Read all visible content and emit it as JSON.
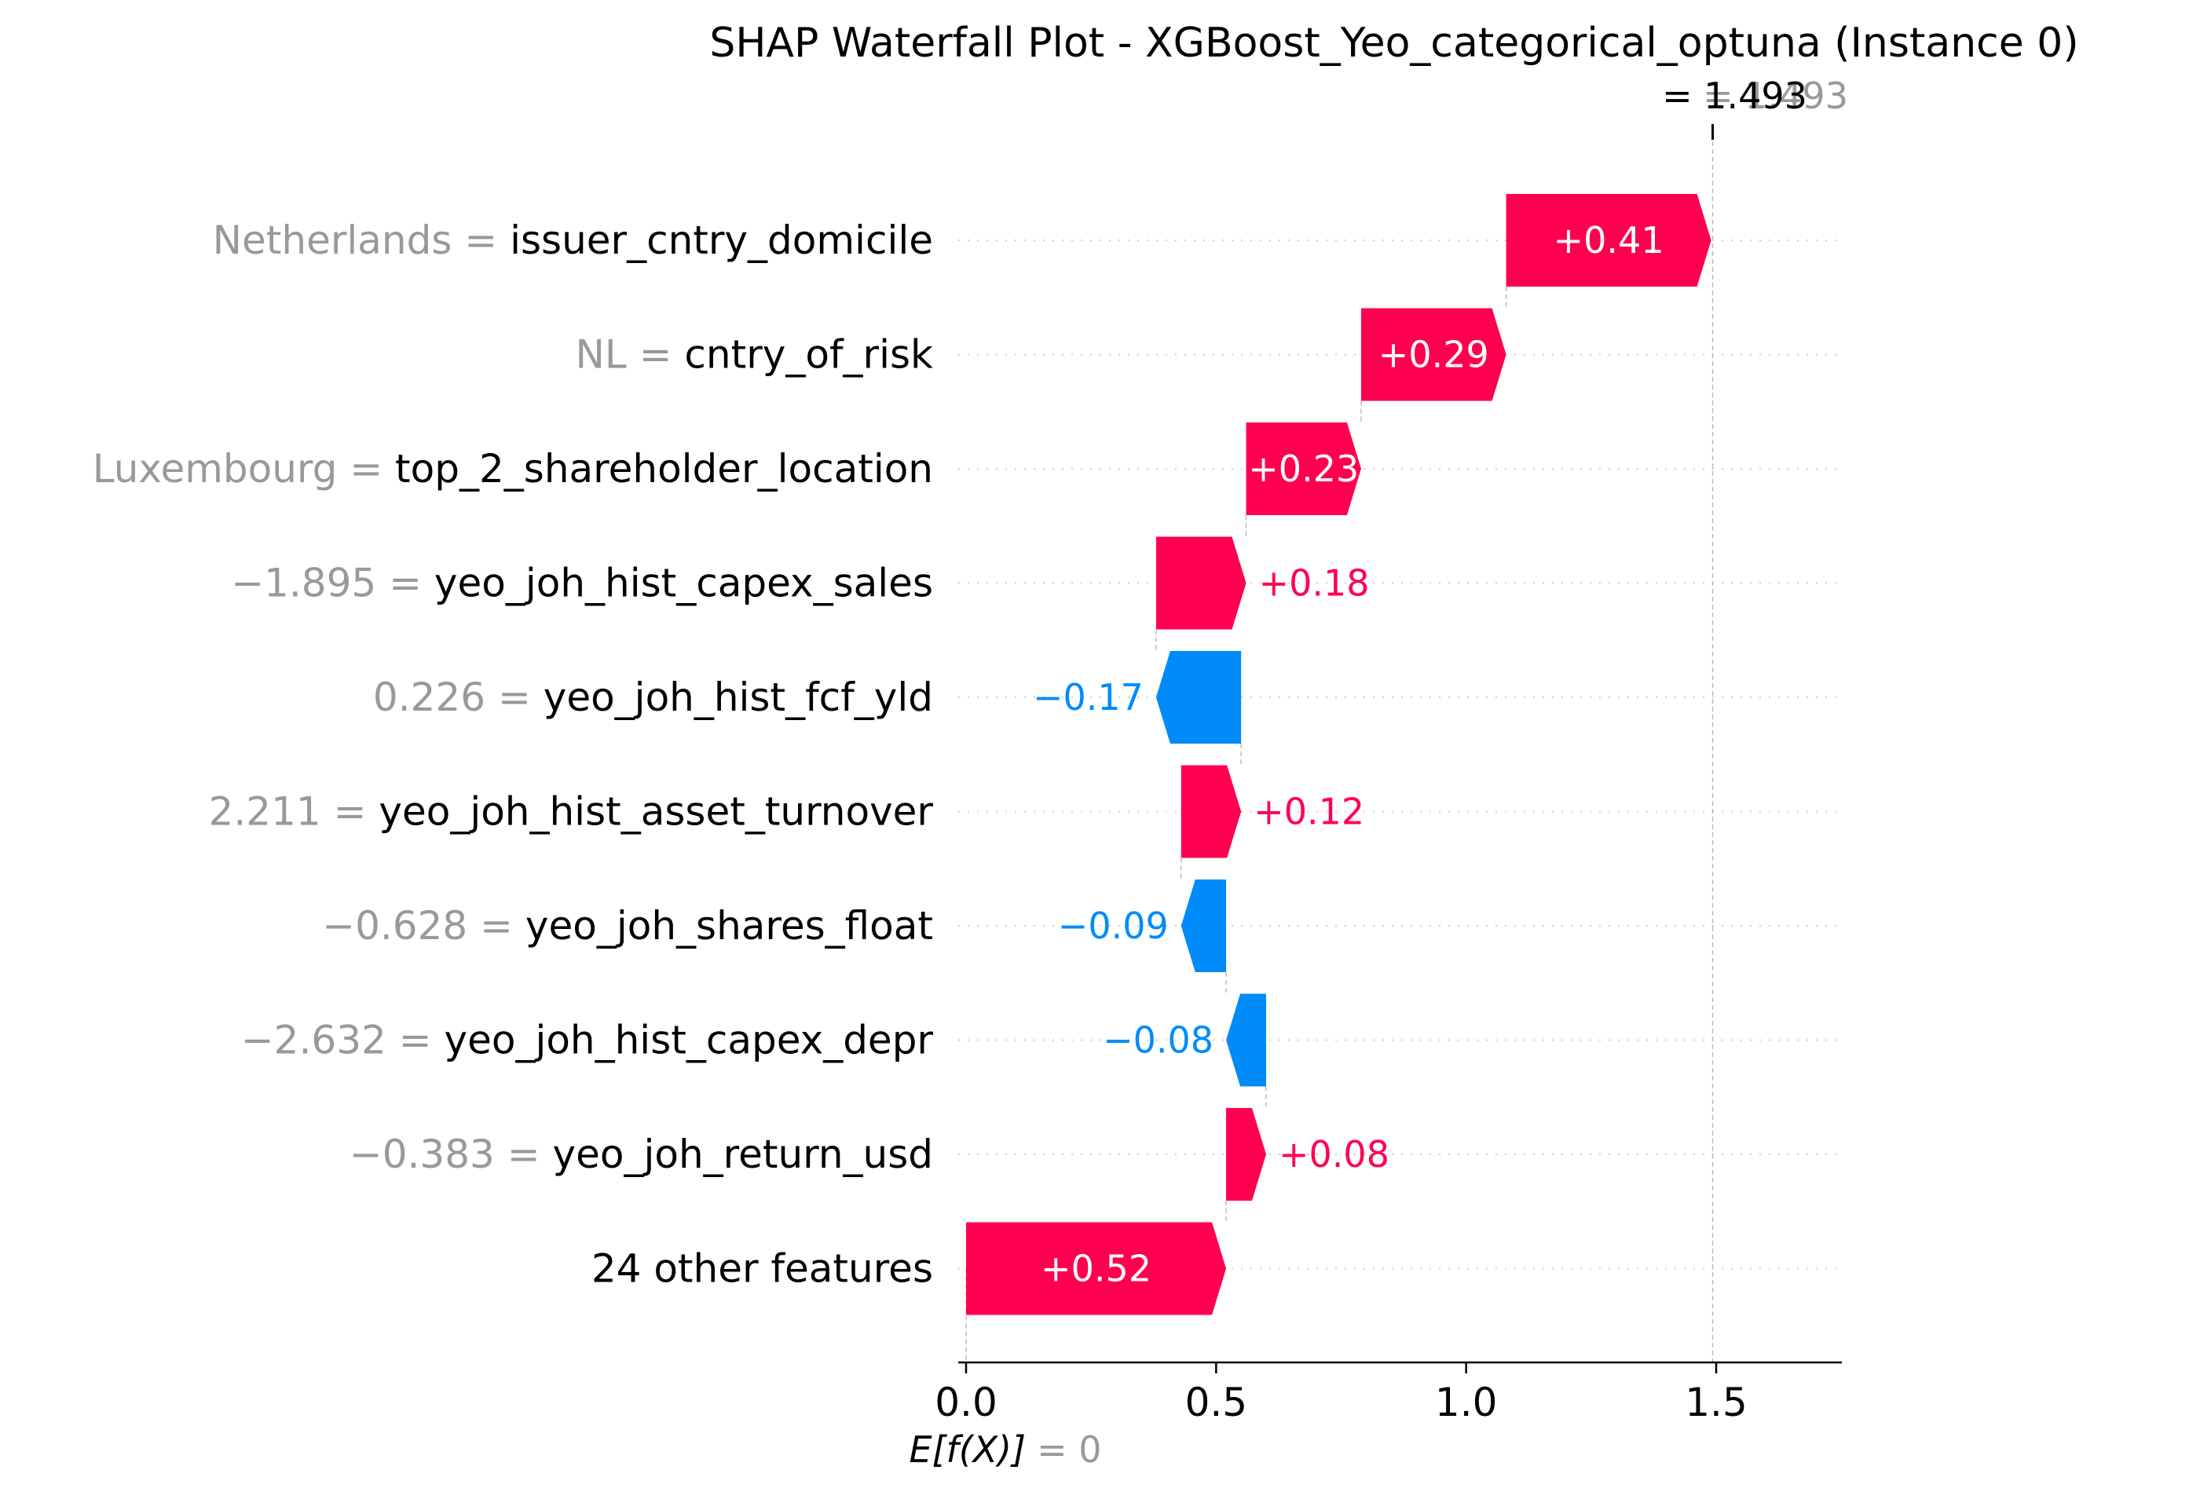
{
  "chart_data": {
    "type": "waterfall",
    "title": "SHAP Waterfall Plot - XGBoost_Yeo_categorical_optuna (Instance 0)",
    "base_value": 0,
    "base_label": "E[f(X)]",
    "base_value_text": "= 0",
    "final_value": 1.493,
    "final_label_prefix": "=",
    "final_value_text": "1.493",
    "final_value_ghost_text": "= 1.493",
    "xlim": [
      -0.005,
      1.75
    ],
    "xticks": [
      "0.0",
      "0.5",
      "1.0",
      "1.5"
    ],
    "grid": "dotted horizontal row guides",
    "features": [
      {
        "name": "issuer_cntry_domicile",
        "value": "Netherlands",
        "shap": 0.41,
        "label": "+0.41"
      },
      {
        "name": "cntry_of_risk",
        "value": "NL",
        "shap": 0.29,
        "label": "+0.29"
      },
      {
        "name": "top_2_shareholder_location",
        "value": "Luxembourg",
        "shap": 0.23,
        "label": "+0.23"
      },
      {
        "name": "yeo_joh_hist_capex_sales",
        "value": "−1.895",
        "shap": 0.18,
        "label": "+0.18"
      },
      {
        "name": "yeo_joh_hist_fcf_yld",
        "value": "0.226",
        "shap": -0.17,
        "label": "−0.17"
      },
      {
        "name": "yeo_joh_hist_asset_turnover",
        "value": "2.211",
        "shap": 0.12,
        "label": "+0.12"
      },
      {
        "name": "yeo_joh_shares_float",
        "value": "−0.628",
        "shap": -0.09,
        "label": "−0.09"
      },
      {
        "name": "yeo_joh_hist_capex_depr",
        "value": "−2.632",
        "shap": -0.08,
        "label": "−0.08"
      },
      {
        "name": "yeo_joh_return_usd",
        "value": "−0.383",
        "shap": 0.08,
        "label": "+0.08"
      },
      {
        "name": "24 other features",
        "value": "",
        "shap": 0.52,
        "label": "+0.52"
      }
    ],
    "colors": {
      "positive": "#ff0051",
      "negative": "#008bfb",
      "value_text": "#999999",
      "text": "#000000"
    }
  }
}
